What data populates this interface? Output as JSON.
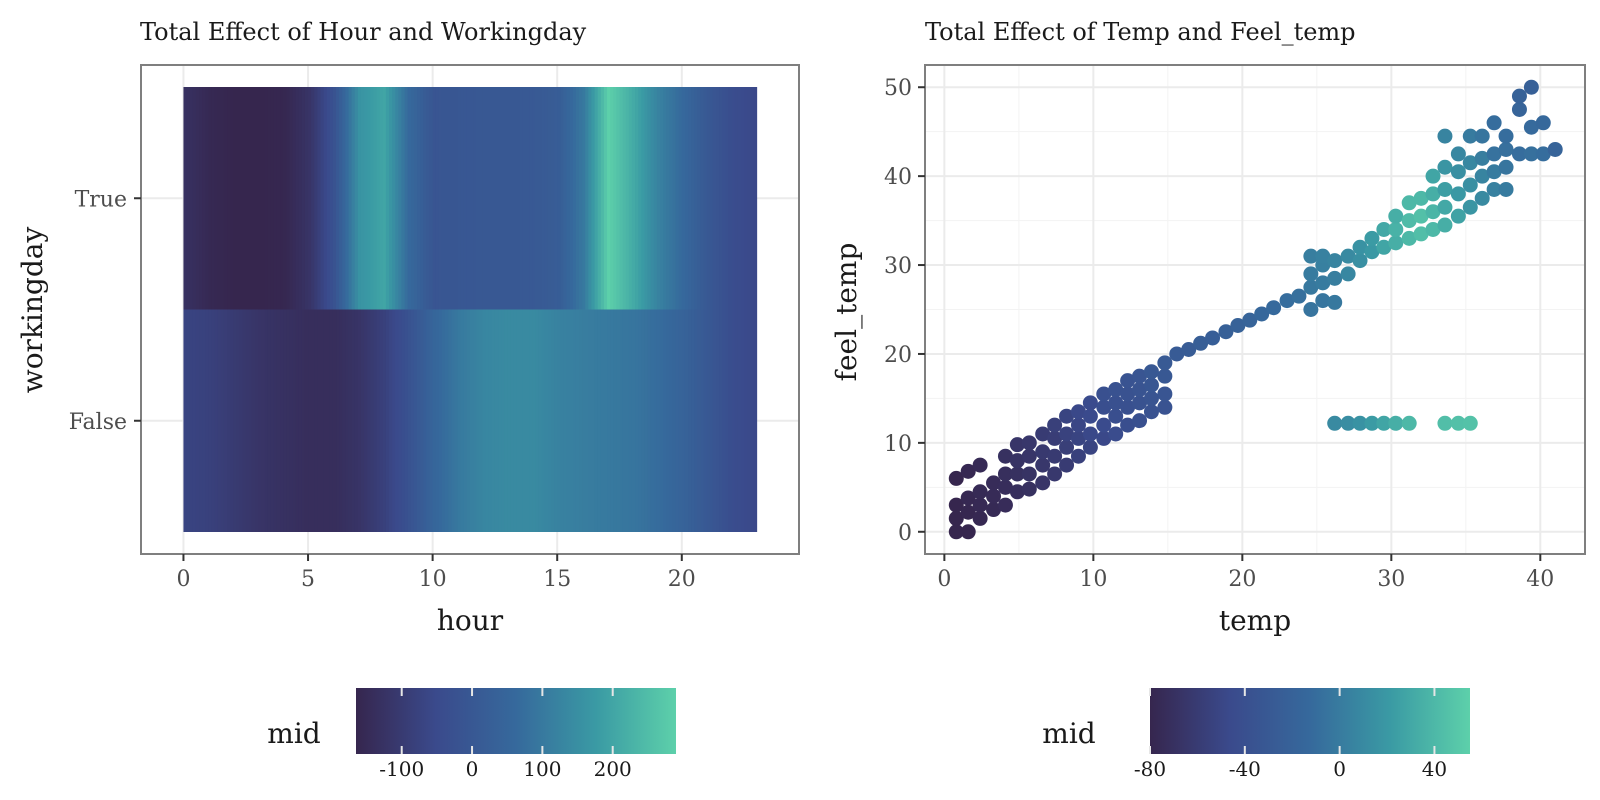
{
  "chart_data": [
    {
      "type": "heatmap",
      "title": "Total Effect of Hour and Workingday",
      "xlabel": "hour",
      "ylabel": "workingday",
      "xlim": [
        -0.5,
        23.5
      ],
      "x_ticks": [
        0,
        5,
        10,
        15,
        20
      ],
      "y_categories": [
        "True",
        "False"
      ],
      "grid": true,
      "legend": {
        "title": "mid",
        "position": "bottom",
        "range": [
          -165,
          290
        ],
        "ticks": [
          -100,
          0,
          100,
          200
        ],
        "colors": [
          "#36264e",
          "#3a4a8c",
          "#36699c",
          "#3a9aa4",
          "#5dd0aa"
        ]
      },
      "rows": [
        {
          "category": "True",
          "hours": [
            0,
            1,
            2,
            3,
            4,
            5,
            6,
            7,
            8,
            9,
            10,
            11,
            12,
            13,
            14,
            15,
            16,
            17,
            18,
            19,
            20,
            21,
            22,
            23
          ],
          "values": [
            -130,
            -155,
            -165,
            -165,
            -160,
            -120,
            -20,
            160,
            200,
            60,
            -10,
            -5,
            0,
            0,
            5,
            20,
            100,
            290,
            210,
            120,
            60,
            0,
            -40,
            -60
          ]
        },
        {
          "category": "False",
          "hours": [
            0,
            1,
            2,
            3,
            4,
            5,
            6,
            7,
            8,
            9,
            10,
            11,
            12,
            13,
            14,
            15,
            16,
            17,
            18,
            19,
            20,
            21,
            22,
            23
          ],
          "values": [
            -70,
            -80,
            -100,
            -120,
            -130,
            -140,
            -140,
            -120,
            -80,
            -20,
            50,
            100,
            130,
            140,
            140,
            120,
            110,
            100,
            90,
            70,
            40,
            0,
            -40,
            -60
          ]
        }
      ]
    },
    {
      "type": "scatter",
      "title": "Total Effect of Temp and Feel_temp",
      "xlabel": "temp",
      "ylabel": "feel_temp",
      "xlim": [
        -1.3,
        43.0
      ],
      "ylim": [
        -2.5,
        52.5
      ],
      "x_ticks": [
        0,
        10,
        20,
        30,
        40
      ],
      "y_ticks": [
        0,
        10,
        20,
        30,
        40,
        50
      ],
      "grid": true,
      "legend": {
        "title": "mid",
        "position": "bottom",
        "range": [
          -80,
          55
        ],
        "ticks": [
          -80,
          -40,
          0,
          40
        ],
        "colors": [
          "#36264e",
          "#3a4a8c",
          "#36699c",
          "#3a9aa4",
          "#5dd0aa"
        ]
      },
      "points": [
        [
          0.8,
          6.0,
          -80
        ],
        [
          1.6,
          6.8,
          -78
        ],
        [
          2.4,
          7.5,
          -76
        ],
        [
          0.8,
          0,
          -80
        ],
        [
          1.6,
          0,
          -80
        ],
        [
          0.8,
          1.5,
          -80
        ],
        [
          0.8,
          3.0,
          -80
        ],
        [
          1.6,
          2.2,
          -79
        ],
        [
          1.6,
          3.8,
          -78
        ],
        [
          2.4,
          1.5,
          -78
        ],
        [
          2.4,
          3.0,
          -77
        ],
        [
          2.4,
          4.5,
          -76
        ],
        [
          3.3,
          2.5,
          -76
        ],
        [
          3.3,
          4.0,
          -75
        ],
        [
          3.3,
          5.5,
          -74
        ],
        [
          4.1,
          3.0,
          -74
        ],
        [
          4.1,
          5.0,
          -73
        ],
        [
          4.1,
          6.5,
          -72
        ],
        [
          4.1,
          8.5,
          -70
        ],
        [
          4.9,
          4.5,
          -72
        ],
        [
          4.9,
          6.5,
          -70
        ],
        [
          4.9,
          8.0,
          -68
        ],
        [
          4.9,
          9.8,
          -66
        ],
        [
          5.7,
          4.8,
          -70
        ],
        [
          5.7,
          6.5,
          -68
        ],
        [
          5.7,
          8.5,
          -66
        ],
        [
          5.7,
          10.0,
          -64
        ],
        [
          6.6,
          5.5,
          -66
        ],
        [
          6.6,
          7.5,
          -64
        ],
        [
          6.6,
          9.0,
          -62
        ],
        [
          6.6,
          11.0,
          -60
        ],
        [
          7.4,
          6.5,
          -63
        ],
        [
          7.4,
          8.5,
          -61
        ],
        [
          7.4,
          10.5,
          -58
        ],
        [
          7.4,
          12.0,
          -56
        ],
        [
          8.2,
          7.5,
          -60
        ],
        [
          8.2,
          9.5,
          -57
        ],
        [
          8.2,
          11.0,
          -54
        ],
        [
          8.2,
          13.0,
          -52
        ],
        [
          9.0,
          8.5,
          -55
        ],
        [
          9.0,
          10.5,
          -52
        ],
        [
          9.0,
          12.0,
          -50
        ],
        [
          9.0,
          13.5,
          -48
        ],
        [
          9.8,
          9.5,
          -52
        ],
        [
          9.8,
          11.0,
          -48
        ],
        [
          9.8,
          13.0,
          -46
        ],
        [
          9.8,
          14.5,
          -45
        ],
        [
          10.7,
          10.5,
          -48
        ],
        [
          10.7,
          12.0,
          -45
        ],
        [
          10.7,
          14.0,
          -42
        ],
        [
          10.7,
          15.5,
          -40
        ],
        [
          11.5,
          11.0,
          -44
        ],
        [
          11.5,
          13.0,
          -42
        ],
        [
          11.5,
          14.5,
          -40
        ],
        [
          11.5,
          16.0,
          -38
        ],
        [
          12.3,
          12.0,
          -42
        ],
        [
          12.3,
          14.0,
          -40
        ],
        [
          12.3,
          15.5,
          -38
        ],
        [
          12.3,
          17.0,
          -36
        ],
        [
          13.1,
          12.5,
          -40
        ],
        [
          13.1,
          14.5,
          -38
        ],
        [
          13.1,
          16.0,
          -35
        ],
        [
          13.1,
          17.5,
          -34
        ],
        [
          13.9,
          13.5,
          -38
        ],
        [
          13.9,
          15.0,
          -35
        ],
        [
          13.9,
          16.5,
          -33
        ],
        [
          13.9,
          18.0,
          -31
        ],
        [
          14.8,
          14.0,
          -36
        ],
        [
          14.8,
          15.5,
          -34
        ],
        [
          14.8,
          17.5,
          -31
        ],
        [
          14.8,
          19.0,
          -29
        ],
        [
          15.6,
          20.0,
          -28
        ],
        [
          16.4,
          20.5,
          -27
        ],
        [
          17.2,
          21.2,
          -25
        ],
        [
          18.0,
          21.8,
          -24
        ],
        [
          18.9,
          22.5,
          -22
        ],
        [
          19.7,
          23.2,
          -20
        ],
        [
          20.5,
          23.8,
          -18
        ],
        [
          21.3,
          24.5,
          -15
        ],
        [
          22.1,
          25.2,
          -13
        ],
        [
          23.0,
          26.0,
          -10
        ],
        [
          23.8,
          26.5,
          -8
        ],
        [
          24.6,
          25.0,
          -5
        ],
        [
          24.6,
          27.5,
          -2
        ],
        [
          24.6,
          29.0,
          0
        ],
        [
          24.6,
          31.0,
          2
        ],
        [
          25.4,
          26.0,
          -4
        ],
        [
          25.4,
          28.0,
          0
        ],
        [
          25.4,
          30.0,
          3
        ],
        [
          25.4,
          31.0,
          4
        ],
        [
          26.2,
          25.8,
          -2
        ],
        [
          26.2,
          28.5,
          2
        ],
        [
          26.2,
          30.5,
          6
        ],
        [
          27.1,
          29.0,
          8
        ],
        [
          27.1,
          31.0,
          10
        ],
        [
          27.9,
          30.5,
          14
        ],
        [
          27.9,
          32.0,
          16
        ],
        [
          28.7,
          31.5,
          20
        ],
        [
          28.7,
          33.0,
          22
        ],
        [
          29.5,
          32.0,
          28
        ],
        [
          29.5,
          34.0,
          30
        ],
        [
          30.3,
          32.5,
          34
        ],
        [
          30.3,
          34.0,
          36
        ],
        [
          30.3,
          35.5,
          34
        ],
        [
          31.2,
          33.0,
          40
        ],
        [
          31.2,
          35.0,
          42
        ],
        [
          31.2,
          37.0,
          40
        ],
        [
          32.0,
          33.5,
          44
        ],
        [
          32.0,
          35.5,
          45
        ],
        [
          32.0,
          37.5,
          40
        ],
        [
          32.8,
          34.0,
          40
        ],
        [
          32.8,
          36.0,
          38
        ],
        [
          32.8,
          38.0,
          34
        ],
        [
          32.8,
          40.0,
          28
        ],
        [
          33.6,
          34.5,
          34
        ],
        [
          33.6,
          36.5,
          30
        ],
        [
          33.6,
          38.5,
          24
        ],
        [
          33.6,
          41.0,
          18
        ],
        [
          33.6,
          44.5,
          6
        ],
        [
          34.5,
          35.5,
          26
        ],
        [
          34.5,
          38.0,
          20
        ],
        [
          34.5,
          40.5,
          14
        ],
        [
          34.5,
          42.5,
          8
        ],
        [
          35.3,
          36.5,
          18
        ],
        [
          35.3,
          39.0,
          14
        ],
        [
          35.3,
          41.5,
          8
        ],
        [
          35.3,
          44.5,
          0
        ],
        [
          36.1,
          37.5,
          10
        ],
        [
          36.1,
          40.0,
          6
        ],
        [
          36.1,
          42.0,
          2
        ],
        [
          36.1,
          44.5,
          -4
        ],
        [
          36.9,
          38.5,
          4
        ],
        [
          36.9,
          40.5,
          0
        ],
        [
          36.9,
          42.5,
          -6
        ],
        [
          36.9,
          46.0,
          -10
        ],
        [
          37.7,
          38.5,
          0
        ],
        [
          37.7,
          41.0,
          -4
        ],
        [
          37.7,
          43.0,
          -8
        ],
        [
          37.7,
          44.5,
          -10
        ],
        [
          38.6,
          42.5,
          -10
        ],
        [
          38.6,
          47.5,
          -18
        ],
        [
          38.6,
          49.0,
          -20
        ],
        [
          39.4,
          42.5,
          -8
        ],
        [
          39.4,
          45.5,
          -12
        ],
        [
          39.4,
          50.0,
          -22
        ],
        [
          40.2,
          42.5,
          -10
        ],
        [
          40.2,
          46.0,
          -14
        ],
        [
          41.0,
          43.0,
          -18
        ],
        [
          26.2,
          12.2,
          10
        ],
        [
          27.1,
          12.2,
          12
        ],
        [
          27.9,
          12.2,
          16
        ],
        [
          28.7,
          12.2,
          22
        ],
        [
          29.5,
          12.2,
          28
        ],
        [
          30.3,
          12.2,
          34
        ],
        [
          31.2,
          12.2,
          40
        ],
        [
          33.6,
          12.2,
          44
        ],
        [
          34.5,
          12.2,
          45
        ],
        [
          35.3,
          12.2,
          46
        ]
      ]
    }
  ]
}
